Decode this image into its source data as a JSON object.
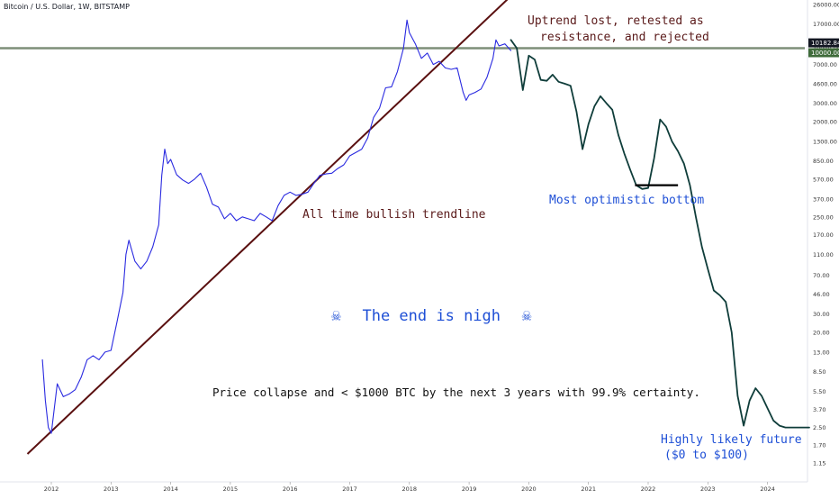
{
  "header": {
    "symbol": "Bitcoin / U.S. Dollar, 1W, BITSTAMP"
  },
  "colors": {
    "price_line": "#2a2ae0",
    "forecast_line": "#0f3d3a",
    "trendline": "#5a1010",
    "resistance": "#7d8f78",
    "annotation_blue": "#1e4fd6",
    "annotation_red": "#5a1a1a"
  },
  "annotations": {
    "uptrend_line1": "Uptrend lost, retested as",
    "uptrend_line2": "resistance, and rejected",
    "trendline_label": "All time bullish trendline",
    "bottom_label": "Most optimistic bottom",
    "doom_title": "The end is nigh",
    "doom_icon": "skull-crossbones-icon",
    "collapse_text": "Price collapse and < $1000 BTC by the next 3 years with 99.9% certainty.",
    "future_line1": "Highly likely future",
    "future_line2": "($0 to $100)"
  },
  "chart_data": {
    "type": "line",
    "title": "",
    "xlabel": "",
    "ylabel": "",
    "y_scale": "log",
    "grid": false,
    "legend": "none",
    "x_ticks": [
      "2012",
      "2013",
      "2014",
      "2015",
      "2016",
      "2017",
      "2018",
      "2019",
      "2020",
      "2021",
      "2022",
      "2023",
      "2024"
    ],
    "y_ticks": [
      "26000.00",
      "17000.00",
      "10000.00",
      "7000.00",
      "4600.00",
      "3000.00",
      "2000.00",
      "1300.00",
      "850.00",
      "570.00",
      "370.00",
      "250.00",
      "170.00",
      "110.00",
      "70.00",
      "46.00",
      "30.00",
      "20.00",
      "13.00",
      "8.50",
      "5.50",
      "3.70",
      "2.50",
      "1.70",
      "1.15"
    ],
    "y_ticks_values": [
      26000,
      17000,
      10000,
      7000,
      4600,
      3000,
      2000,
      1300,
      850,
      570,
      370,
      250,
      170,
      110,
      70,
      46,
      30,
      20,
      13,
      8.5,
      5.5,
      3.7,
      2.5,
      1.7,
      1.15
    ],
    "price_tags": [
      {
        "label": "10182.84",
        "value": 10182.84,
        "color": "#131722"
      },
      {
        "label": "10000.00",
        "value": 10000,
        "color": "#3f6b3a"
      }
    ],
    "resistance_level": 10000,
    "series": [
      {
        "x": [
          2011.85,
          2011.9,
          2011.95,
          2012.0,
          2012.1,
          2012.2,
          2012.3,
          2012.4,
          2012.5,
          2012.6,
          2012.7,
          2012.8,
          2012.9,
          2013.0,
          2013.1,
          2013.2,
          2013.25,
          2013.3,
          2013.4,
          2013.5,
          2013.6,
          2013.7,
          2013.8,
          2013.85,
          2013.9,
          2013.95,
          2014.0,
          2014.1,
          2014.2,
          2014.3,
          2014.4,
          2014.5,
          2014.6,
          2014.7,
          2014.8,
          2014.9,
          2015.0,
          2015.1,
          2015.2,
          2015.3,
          2015.4,
          2015.5,
          2015.6,
          2015.7,
          2015.8,
          2015.9,
          2016.0,
          2016.1,
          2016.2,
          2016.3,
          2016.4,
          2016.5,
          2016.6,
          2016.7,
          2016.8,
          2016.9,
          2017.0,
          2017.1,
          2017.2,
          2017.3,
          2017.4,
          2017.5,
          2017.6,
          2017.7,
          2017.8,
          2017.9,
          2017.96,
          2018.0,
          2018.1,
          2018.2,
          2018.3,
          2018.4,
          2018.5,
          2018.6,
          2018.7,
          2018.8,
          2018.9,
          2018.95,
          2019.0,
          2019.1,
          2019.2,
          2019.3,
          2019.4,
          2019.45,
          2019.5,
          2019.6,
          2019.7
        ],
        "values": [
          11,
          4.5,
          2.5,
          2.2,
          6.5,
          4.9,
          5.2,
          5.7,
          7.5,
          11,
          12,
          11,
          13,
          13.5,
          25,
          48,
          110,
          150,
          95,
          80,
          95,
          130,
          210,
          620,
          1100,
          800,
          880,
          630,
          560,
          520,
          570,
          650,
          480,
          330,
          310,
          240,
          270,
          230,
          250,
          240,
          230,
          270,
          250,
          230,
          320,
          400,
          430,
          400,
          410,
          430,
          520,
          620,
          640,
          650,
          720,
          780,
          950,
          1020,
          1100,
          1400,
          2200,
          2700,
          4200,
          4300,
          6000,
          10000,
          18500,
          14000,
          11000,
          8000,
          9000,
          7000,
          7500,
          6500,
          6300,
          6500,
          3800,
          3200,
          3600,
          3800,
          4100,
          5300,
          8000,
          12000,
          10500,
          11000,
          9500
        ]
      },
      {
        "x": [
          2019.7,
          2019.8,
          2019.9,
          2020.0,
          2020.1,
          2020.2,
          2020.3,
          2020.4,
          2020.5,
          2020.6,
          2020.7,
          2020.8,
          2020.9,
          2021.0,
          2021.1,
          2021.2,
          2021.3,
          2021.4,
          2021.5,
          2021.6,
          2021.7,
          2021.8,
          2021.9,
          2022.0,
          2022.1,
          2022.2,
          2022.3,
          2022.4,
          2022.5,
          2022.6,
          2022.7,
          2022.8,
          2022.9,
          2023.0,
          2023.1,
          2023.2,
          2023.3,
          2023.4,
          2023.5,
          2023.6,
          2023.7,
          2023.8,
          2023.9,
          2024.0,
          2024.1,
          2024.2,
          2024.3,
          2024.4,
          2024.5,
          2024.6,
          2024.7
        ],
        "values": [
          12000,
          10000,
          4000,
          8500,
          7800,
          5000,
          4900,
          5600,
          4800,
          4600,
          4400,
          2500,
          1100,
          1900,
          2800,
          3500,
          3000,
          2600,
          1500,
          1000,
          700,
          500,
          460,
          470,
          900,
          2100,
          1800,
          1300,
          1050,
          800,
          500,
          250,
          130,
          80,
          50,
          45,
          39,
          20,
          5,
          2.6,
          4.5,
          5.9,
          5,
          3.8,
          2.9,
          2.6,
          2.5,
          2.5,
          2.5,
          2.5,
          2.5
        ]
      }
    ],
    "trendline": {
      "from": {
        "x": 2011.6,
        "y": 1.4
      },
      "to": {
        "x": 2019.9,
        "y": 40000
      }
    },
    "support_marker": {
      "x1": 2021.78,
      "x2": 2022.5,
      "y": 500
    }
  }
}
